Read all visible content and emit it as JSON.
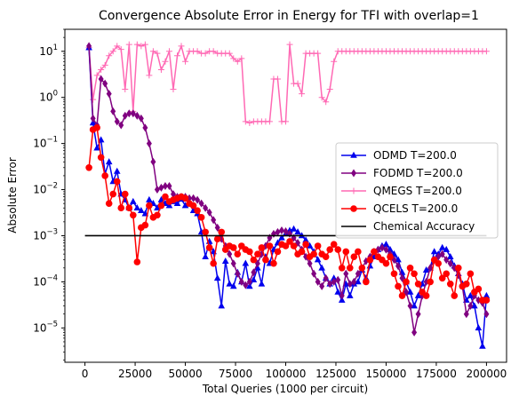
{
  "chart_data": {
    "type": "line",
    "title": "Convergence Absolute Error in Energy for TFI with overlap=1",
    "xlabel": "Total Queries (1000 per circuit)",
    "ylabel": "Absolute Error",
    "xlim": [
      -10000,
      210000
    ],
    "ylim": [
      1.8e-06,
      30
    ],
    "yscale": "log",
    "xticks": [
      0,
      25000,
      50000,
      75000,
      100000,
      125000,
      150000,
      175000,
      200000
    ],
    "xtick_labels": [
      "0",
      "25000",
      "50000",
      "75000",
      "100000",
      "125000",
      "150000",
      "175000",
      "200000"
    ],
    "yticks": [
      1e-05,
      0.0001,
      0.001,
      0.01,
      0.1,
      1.0,
      10.0
    ],
    "ytick_labels": [
      "10",
      "10",
      "10",
      "10",
      "10",
      "10",
      "10"
    ],
    "ytick_exponents": [
      "−5",
      "−4",
      "−3",
      "−2",
      "−1",
      "0",
      "1"
    ],
    "legend_position": "center-right",
    "hline": {
      "y": 0.001,
      "x0": 0,
      "x1": 200000,
      "color": "#000000",
      "name": "Chemical Accuracy"
    },
    "series": [
      {
        "name": "ODMD T=200.0",
        "color": "#0000ee",
        "marker": "triangle",
        "x": [
          2000,
          4000,
          6000,
          8000,
          10000,
          12000,
          14000,
          16000,
          18000,
          20000,
          22000,
          24000,
          26000,
          28000,
          30000,
          32000,
          34000,
          36000,
          38000,
          40000,
          42000,
          44000,
          46000,
          48000,
          50000,
          52000,
          54000,
          56000,
          58000,
          60000,
          62000,
          64000,
          66000,
          68000,
          70000,
          72000,
          74000,
          76000,
          78000,
          80000,
          82000,
          84000,
          86000,
          88000,
          90000,
          92000,
          94000,
          96000,
          98000,
          100000,
          102000,
          104000,
          106000,
          108000,
          110000,
          112000,
          114000,
          116000,
          118000,
          120000,
          122000,
          124000,
          126000,
          128000,
          130000,
          132000,
          134000,
          136000,
          138000,
          140000,
          142000,
          144000,
          146000,
          148000,
          150000,
          152000,
          154000,
          156000,
          158000,
          160000,
          162000,
          164000,
          166000,
          168000,
          170000,
          172000,
          174000,
          176000,
          178000,
          180000,
          182000,
          184000,
          186000,
          188000,
          190000,
          192000,
          194000,
          196000,
          198000,
          200000
        ],
        "y": [
          12,
          0.28,
          0.08,
          0.12,
          0.022,
          0.04,
          0.015,
          0.025,
          0.008,
          0.006,
          0.004,
          0.0055,
          0.004,
          0.0035,
          0.003,
          0.006,
          0.005,
          0.004,
          0.006,
          0.005,
          0.0045,
          0.0055,
          0.005,
          0.0062,
          0.0045,
          0.005,
          0.0035,
          0.003,
          0.0012,
          0.00035,
          0.00075,
          0.00045,
          0.00012,
          3e-05,
          0.00028,
          9e-05,
          8e-05,
          0.00016,
          0.0001,
          0.00025,
          8e-05,
          0.00011,
          0.0002,
          9e-05,
          0.00035,
          0.00025,
          0.0005,
          0.0007,
          0.0009,
          0.0011,
          0.0013,
          0.0014,
          0.0012,
          0.001,
          0.0008,
          0.0006,
          0.00045,
          0.0003,
          0.0002,
          0.00012,
          9e-05,
          0.00012,
          6e-05,
          4e-05,
          9e-05,
          5e-05,
          9e-05,
          0.0001,
          0.00018,
          0.00012,
          0.00022,
          0.00035,
          0.0005,
          0.0006,
          0.00065,
          0.0005,
          0.0004,
          0.0003,
          0.00016,
          0.0001,
          6e-05,
          3e-05,
          5e-05,
          9e-05,
          0.00018,
          0.0002,
          0.00045,
          0.0004,
          0.00055,
          0.0005,
          0.00035,
          0.00022,
          0.00015,
          9e-05,
          4e-05,
          5e-05,
          3e-05,
          1e-05,
          4e-06,
          5e-05
        ]
      },
      {
        "name": "FODMD T=200.0",
        "color": "#800080",
        "marker": "diamond",
        "x": [
          2000,
          4000,
          6000,
          8000,
          10000,
          12000,
          14000,
          16000,
          18000,
          20000,
          22000,
          24000,
          26000,
          28000,
          30000,
          32000,
          34000,
          36000,
          38000,
          40000,
          42000,
          44000,
          46000,
          48000,
          50000,
          52000,
          54000,
          56000,
          58000,
          60000,
          62000,
          64000,
          66000,
          68000,
          70000,
          72000,
          74000,
          76000,
          78000,
          80000,
          82000,
          84000,
          86000,
          88000,
          90000,
          92000,
          94000,
          96000,
          98000,
          100000,
          102000,
          104000,
          106000,
          108000,
          110000,
          112000,
          114000,
          116000,
          118000,
          120000,
          122000,
          124000,
          126000,
          128000,
          130000,
          132000,
          134000,
          136000,
          138000,
          140000,
          142000,
          144000,
          146000,
          148000,
          150000,
          152000,
          154000,
          156000,
          158000,
          160000,
          162000,
          164000,
          166000,
          168000,
          170000,
          172000,
          174000,
          176000,
          178000,
          180000,
          182000,
          184000,
          186000,
          188000,
          190000,
          192000,
          194000,
          196000,
          198000,
          200000
        ],
        "y": [
          13,
          0.35,
          0.25,
          2.5,
          2.0,
          1.2,
          0.5,
          0.3,
          0.25,
          0.4,
          0.45,
          0.45,
          0.4,
          0.35,
          0.22,
          0.1,
          0.04,
          0.01,
          0.011,
          0.012,
          0.012,
          0.008,
          0.007,
          0.007,
          0.007,
          0.0065,
          0.0065,
          0.006,
          0.005,
          0.004,
          0.0032,
          0.0022,
          0.0015,
          0.00085,
          0.0006,
          0.0004,
          0.00025,
          0.00015,
          0.0001,
          8.5e-05,
          0.0001,
          0.00016,
          0.00025,
          0.0004,
          0.0006,
          0.0009,
          0.0011,
          0.0012,
          0.0013,
          0.00125,
          0.0011,
          0.0009,
          0.0007,
          0.0005,
          0.00035,
          0.00025,
          0.00015,
          0.0001,
          8e-05,
          0.00012,
          9e-05,
          0.0001,
          0.00011,
          5e-05,
          0.00015,
          9e-05,
          0.0001,
          0.00015,
          0.0002,
          0.00028,
          0.00035,
          0.00045,
          0.0005,
          0.00055,
          0.0005,
          0.0004,
          0.0003,
          0.00022,
          0.00012,
          6e-05,
          3e-05,
          8e-06,
          2e-05,
          5e-05,
          0.0001,
          0.0002,
          0.0003,
          0.00035,
          0.0004,
          0.0003,
          0.00025,
          0.0002,
          0.00014,
          8e-05,
          2e-05,
          3e-05,
          5e-05,
          4e-05,
          3.5e-05,
          2e-05
        ]
      },
      {
        "name": "QMEGS T=200.0",
        "color": "#ff69b4",
        "marker": "plus",
        "x": [
          2000,
          4000,
          6000,
          8000,
          10000,
          12000,
          14000,
          16000,
          18000,
          20000,
          22000,
          24000,
          26000,
          28000,
          30000,
          32000,
          34000,
          36000,
          38000,
          40000,
          42000,
          44000,
          46000,
          48000,
          50000,
          52000,
          54000,
          56000,
          58000,
          60000,
          62000,
          64000,
          66000,
          68000,
          70000,
          72000,
          74000,
          76000,
          78000,
          80000,
          82000,
          84000,
          86000,
          88000,
          90000,
          92000,
          94000,
          96000,
          98000,
          100000,
          102000,
          104000,
          106000,
          108000,
          110000,
          112000,
          114000,
          116000,
          118000,
          120000,
          122000,
          124000,
          126000,
          128000,
          130000,
          132000,
          134000,
          136000,
          138000,
          140000,
          142000,
          144000,
          146000,
          148000,
          150000,
          152000,
          154000,
          156000,
          158000,
          160000,
          162000,
          164000,
          166000,
          168000,
          170000,
          172000,
          174000,
          176000,
          178000,
          180000,
          182000,
          184000,
          186000,
          188000,
          190000,
          192000,
          194000,
          196000,
          198000,
          200000
        ],
        "y": [
          12,
          0.9,
          3.0,
          4.0,
          5.0,
          8.0,
          10,
          13,
          11,
          1.5,
          14,
          0.5,
          14,
          13,
          14,
          3.0,
          10,
          9.0,
          4.0,
          6.0,
          10,
          1.5,
          8.0,
          13,
          6.0,
          10,
          10,
          10,
          9.0,
          9.0,
          10,
          10,
          9.0,
          9.0,
          9.0,
          9.0,
          7.0,
          6.0,
          7.0,
          0.3,
          0.28,
          0.3,
          0.3,
          0.3,
          0.3,
          0.3,
          2.5,
          2.5,
          0.3,
          0.3,
          14,
          2.0,
          2.0,
          1.2,
          9.0,
          9.0,
          9.0,
          9.0,
          1.0,
          0.8,
          1.5,
          6.0,
          10,
          10,
          10,
          10,
          10,
          10,
          10,
          10,
          10,
          10,
          10,
          10,
          10,
          10,
          10,
          10,
          10,
          10,
          10,
          10,
          10,
          10,
          10,
          10,
          10,
          10,
          10,
          10,
          10,
          10,
          10,
          10,
          10,
          10,
          10,
          10,
          10,
          10
        ]
      },
      {
        "name": "QCELS T=200.0",
        "color": "#ff0000",
        "marker": "circle",
        "x": [
          2000,
          4000,
          6000,
          8000,
          10000,
          12000,
          14000,
          16000,
          18000,
          20000,
          22000,
          24000,
          26000,
          28000,
          30000,
          32000,
          34000,
          36000,
          38000,
          40000,
          42000,
          44000,
          46000,
          48000,
          50000,
          52000,
          54000,
          56000,
          58000,
          60000,
          62000,
          64000,
          66000,
          68000,
          70000,
          72000,
          74000,
          76000,
          78000,
          80000,
          82000,
          84000,
          86000,
          88000,
          90000,
          92000,
          94000,
          96000,
          98000,
          100000,
          102000,
          104000,
          106000,
          108000,
          110000,
          112000,
          114000,
          116000,
          118000,
          120000,
          122000,
          124000,
          126000,
          128000,
          130000,
          132000,
          134000,
          136000,
          138000,
          140000,
          142000,
          144000,
          146000,
          148000,
          150000,
          152000,
          154000,
          156000,
          158000,
          160000,
          162000,
          164000,
          166000,
          168000,
          170000,
          172000,
          174000,
          176000,
          178000,
          180000,
          182000,
          184000,
          186000,
          188000,
          190000,
          192000,
          194000,
          196000,
          198000,
          200000
        ],
        "y": [
          0.03,
          0.2,
          0.22,
          0.05,
          0.02,
          0.005,
          0.008,
          0.015,
          0.004,
          0.008,
          0.004,
          0.0028,
          0.00027,
          0.0015,
          0.0017,
          0.0045,
          0.0025,
          0.0028,
          0.0045,
          0.007,
          0.0055,
          0.006,
          0.0065,
          0.007,
          0.0065,
          0.005,
          0.0045,
          0.0035,
          0.0025,
          0.0012,
          0.00055,
          0.00025,
          0.00085,
          0.0012,
          0.0005,
          0.0006,
          0.00055,
          0.0004,
          0.0006,
          0.0005,
          0.00045,
          0.0003,
          0.0004,
          0.00055,
          0.0003,
          0.0006,
          0.00025,
          0.00045,
          0.00065,
          0.0006,
          0.00075,
          0.0006,
          0.0004,
          0.00045,
          0.00065,
          0.00035,
          0.0004,
          0.0006,
          0.0004,
          0.00035,
          0.0005,
          0.00065,
          0.0005,
          0.0002,
          0.00045,
          0.0002,
          0.00035,
          0.00045,
          0.0002,
          0.0001,
          0.0003,
          0.00045,
          0.00035,
          0.0003,
          0.00025,
          0.00035,
          0.00015,
          8e-05,
          5e-05,
          0.0001,
          0.0002,
          0.00015,
          9e-05,
          6e-05,
          5e-05,
          0.0001,
          0.0003,
          0.00025,
          0.00012,
          0.00015,
          9e-05,
          5e-05,
          0.0002,
          8e-05,
          9e-05,
          0.00015,
          6e-05,
          7e-05,
          4e-05,
          4e-05
        ]
      }
    ]
  }
}
